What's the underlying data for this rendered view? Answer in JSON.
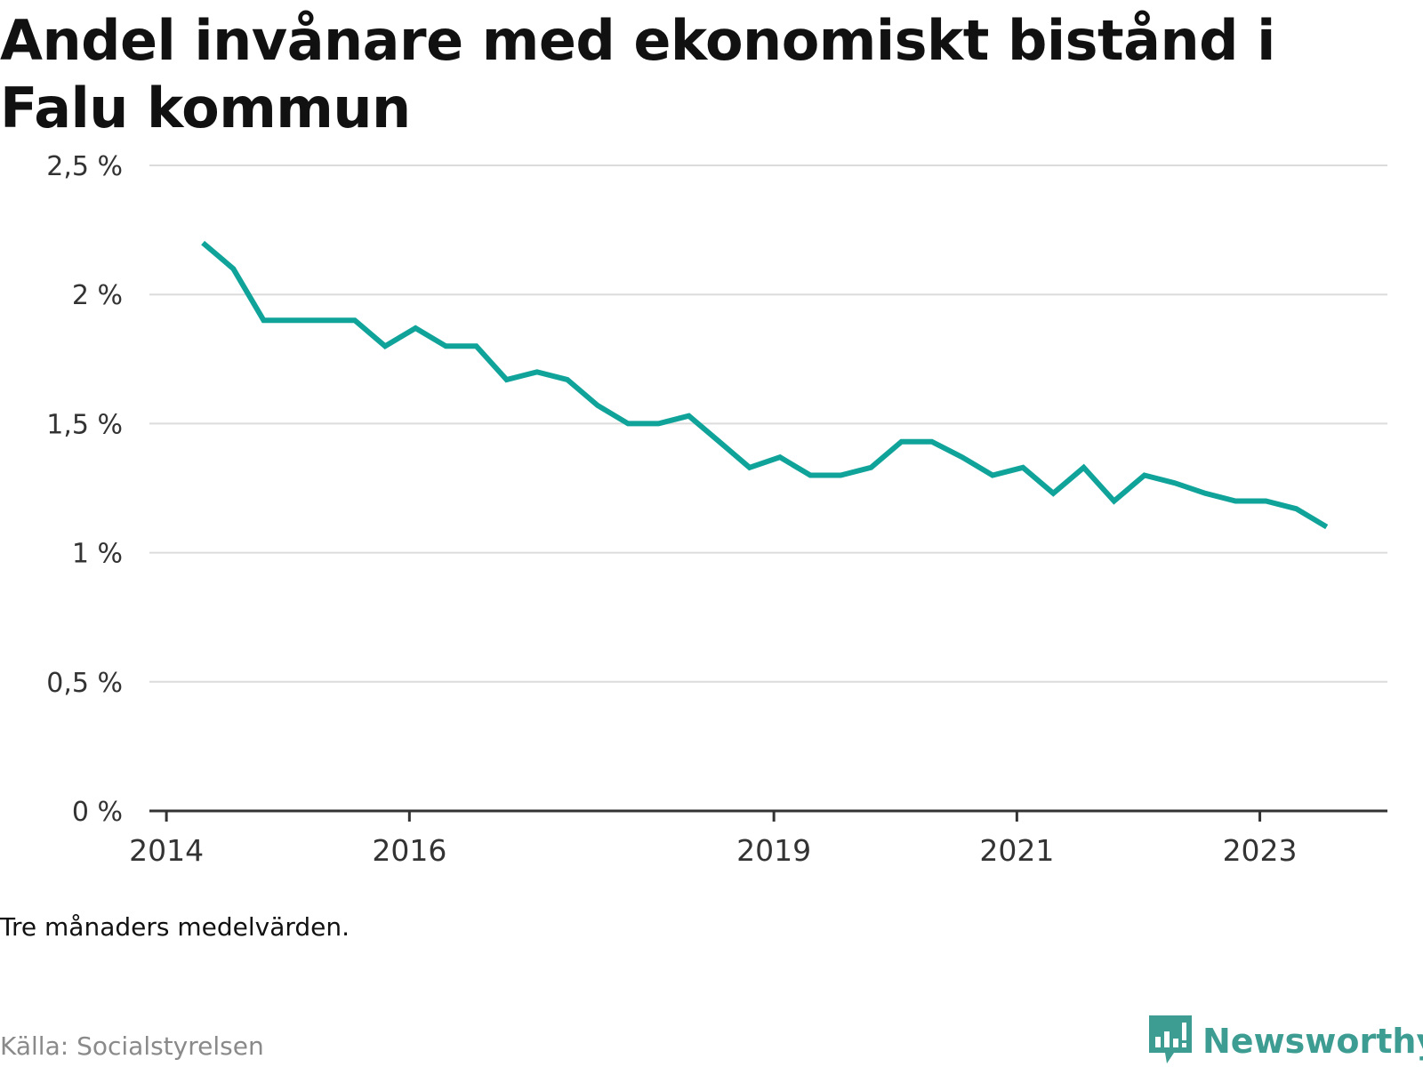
{
  "header": {
    "title": "Andel invånare med ekonomiskt bistånd i Falu kommun"
  },
  "footer": {
    "note": "Tre månaders medelvärden.",
    "source": "Källa: Socialstyrelsen",
    "brand": "Newsworthy"
  },
  "colors": {
    "line": "#0fa39a",
    "grid": "#dcdcdc",
    "axis": "#333333",
    "brand": "#3e9d93"
  },
  "chart_data": {
    "type": "line",
    "title": "Andel invånare med ekonomiskt bistånd i Falu kommun",
    "xlabel": "",
    "ylabel": "",
    "ylim": [
      0,
      2.5
    ],
    "y_ticks": [
      {
        "value": 0,
        "label": "0 %"
      },
      {
        "value": 0.5,
        "label": "0,5 %"
      },
      {
        "value": 1,
        "label": "1 %"
      },
      {
        "value": 1.5,
        "label": "1,5 %"
      },
      {
        "value": 2,
        "label": "2 %"
      },
      {
        "value": 2.5,
        "label": "2,5 %"
      }
    ],
    "x_ticks": [
      {
        "value": 2014,
        "label": "2014"
      },
      {
        "value": 2016,
        "label": "2016"
      },
      {
        "value": 2019,
        "label": "2019"
      },
      {
        "value": 2021,
        "label": "2021"
      },
      {
        "value": 2023,
        "label": "2023"
      }
    ],
    "xlim": [
      2013.86,
      2024.05
    ],
    "grid": true,
    "legend": "none",
    "series": [
      {
        "x": [
          2014.3,
          2014.55,
          2014.8,
          2015.05,
          2015.3,
          2015.55,
          2015.8,
          2016.05,
          2016.3,
          2016.55,
          2016.8,
          2017.05,
          2017.3,
          2017.55,
          2017.8,
          2018.05,
          2018.3,
          2018.55,
          2018.8,
          2019.05,
          2019.3,
          2019.55,
          2019.8,
          2020.05,
          2020.3,
          2020.55,
          2020.8,
          2021.05,
          2021.3,
          2021.55,
          2021.8,
          2022.05,
          2022.3,
          2022.55,
          2022.8,
          2023.05,
          2023.3,
          2023.55,
          2023.8
        ],
        "values": [
          2.2,
          2.1,
          1.9,
          1.9,
          1.9,
          1.9,
          1.8,
          1.87,
          1.8,
          1.8,
          1.67,
          1.7,
          1.67,
          1.57,
          1.5,
          1.5,
          1.53,
          1.43,
          1.33,
          1.37,
          1.3,
          1.3,
          1.33,
          1.43,
          1.43,
          1.37,
          1.3,
          1.33,
          1.23,
          1.33,
          1.2,
          1.3,
          1.27,
          1.23,
          1.2,
          1.2,
          1.17,
          1.1,
          null
        ]
      }
    ]
  }
}
